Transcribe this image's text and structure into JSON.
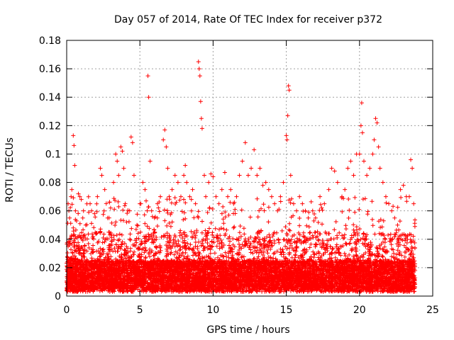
{
  "chart_data": {
    "type": "scatter",
    "title": "Day 057 of 2014, Rate Of TEC Index for receiver p372",
    "xlabel": "GPS time / hours",
    "ylabel": "ROTI / TECUs",
    "xlim": [
      0,
      25
    ],
    "ylim": [
      0,
      0.18
    ],
    "x_ticks": [
      0,
      5,
      10,
      15,
      20,
      25
    ],
    "y_ticks": [
      0,
      0.02,
      0.04,
      0.06,
      0.08,
      0.1,
      0.12,
      0.14,
      0.16,
      0.18
    ],
    "grid": true,
    "marker": "+",
    "color": "#ff0000",
    "series": [
      {
        "points": [
          [
            0.05,
            0.02
          ],
          [
            0.1,
            0.065
          ],
          [
            0.15,
            0.06
          ],
          [
            0.2,
            0.055
          ],
          [
            0.3,
            0.07
          ],
          [
            0.35,
            0.075
          ],
          [
            0.45,
            0.113
          ],
          [
            0.5,
            0.106
          ],
          [
            0.55,
            0.092
          ],
          [
            0.6,
            0.06
          ],
          [
            0.8,
            0.072
          ],
          [
            0.9,
            0.07
          ],
          [
            1.0,
            0.068
          ],
          [
            1.1,
            0.055
          ],
          [
            1.3,
            0.05
          ],
          [
            1.6,
            0.065
          ],
          [
            1.7,
            0.06
          ],
          [
            1.9,
            0.058
          ],
          [
            2.1,
            0.07
          ],
          [
            2.3,
            0.09
          ],
          [
            2.4,
            0.085
          ],
          [
            2.6,
            0.075
          ],
          [
            2.8,
            0.055
          ],
          [
            3.0,
            0.062
          ],
          [
            3.2,
            0.08
          ],
          [
            3.35,
            0.1
          ],
          [
            3.45,
            0.095
          ],
          [
            3.55,
            0.085
          ],
          [
            3.7,
            0.105
          ],
          [
            3.8,
            0.102
          ],
          [
            3.9,
            0.09
          ],
          [
            4.0,
            0.065
          ],
          [
            4.3,
            0.06
          ],
          [
            4.4,
            0.112
          ],
          [
            4.5,
            0.108
          ],
          [
            4.6,
            0.085
          ],
          [
            4.8,
            0.05
          ],
          [
            5.0,
            0.065
          ],
          [
            5.2,
            0.08
          ],
          [
            5.35,
            0.075
          ],
          [
            5.5,
            0.06
          ],
          [
            5.55,
            0.155
          ],
          [
            5.6,
            0.14
          ],
          [
            5.7,
            0.095
          ],
          [
            5.8,
            0.06
          ],
          [
            6.0,
            0.055
          ],
          [
            6.2,
            0.065
          ],
          [
            6.4,
            0.07
          ],
          [
            6.6,
            0.11
          ],
          [
            6.7,
            0.117
          ],
          [
            6.8,
            0.105
          ],
          [
            6.9,
            0.09
          ],
          [
            7.0,
            0.07
          ],
          [
            7.2,
            0.075
          ],
          [
            7.4,
            0.085
          ],
          [
            7.6,
            0.08
          ],
          [
            7.8,
            0.07
          ],
          [
            8.0,
            0.085
          ],
          [
            8.1,
            0.092
          ],
          [
            8.2,
            0.08
          ],
          [
            8.4,
            0.07
          ],
          [
            8.6,
            0.075
          ],
          [
            8.8,
            0.065
          ],
          [
            9.0,
            0.165
          ],
          [
            9.05,
            0.16
          ],
          [
            9.1,
            0.155
          ],
          [
            9.15,
            0.137
          ],
          [
            9.2,
            0.125
          ],
          [
            9.25,
            0.118
          ],
          [
            9.4,
            0.085
          ],
          [
            9.5,
            0.07
          ],
          [
            9.7,
            0.08
          ],
          [
            9.85,
            0.086
          ],
          [
            10.0,
            0.084
          ],
          [
            10.2,
            0.07
          ],
          [
            10.4,
            0.065
          ],
          [
            10.6,
            0.075
          ],
          [
            10.8,
            0.087
          ],
          [
            11.0,
            0.07
          ],
          [
            11.2,
            0.075
          ],
          [
            11.4,
            0.065
          ],
          [
            11.6,
            0.07
          ],
          [
            11.8,
            0.085
          ],
          [
            12.0,
            0.095
          ],
          [
            12.2,
            0.108
          ],
          [
            12.4,
            0.085
          ],
          [
            12.6,
            0.09
          ],
          [
            12.8,
            0.103
          ],
          [
            13.0,
            0.085
          ],
          [
            13.2,
            0.09
          ],
          [
            13.4,
            0.078
          ],
          [
            13.6,
            0.08
          ],
          [
            13.8,
            0.075
          ],
          [
            14.0,
            0.07
          ],
          [
            14.2,
            0.065
          ],
          [
            14.4,
            0.06
          ],
          [
            14.6,
            0.07
          ],
          [
            14.8,
            0.08
          ],
          [
            15.0,
            0.113
          ],
          [
            15.05,
            0.11
          ],
          [
            15.1,
            0.127
          ],
          [
            15.15,
            0.148
          ],
          [
            15.2,
            0.145
          ],
          [
            15.3,
            0.085
          ],
          [
            15.5,
            0.065
          ],
          [
            15.7,
            0.06
          ],
          [
            15.9,
            0.07
          ],
          [
            16.1,
            0.065
          ],
          [
            16.3,
            0.06
          ],
          [
            16.5,
            0.055
          ],
          [
            16.8,
            0.06
          ],
          [
            17.0,
            0.055
          ],
          [
            17.3,
            0.07
          ],
          [
            17.6,
            0.065
          ],
          [
            17.9,
            0.075
          ],
          [
            18.1,
            0.09
          ],
          [
            18.3,
            0.088
          ],
          [
            18.5,
            0.08
          ],
          [
            18.8,
            0.07
          ],
          [
            19.0,
            0.075
          ],
          [
            19.2,
            0.09
          ],
          [
            19.4,
            0.095
          ],
          [
            19.6,
            0.085
          ],
          [
            19.8,
            0.1
          ],
          [
            20.0,
            0.1
          ],
          [
            20.1,
            0.12
          ],
          [
            20.15,
            0.136
          ],
          [
            20.2,
            0.115
          ],
          [
            20.3,
            0.095
          ],
          [
            20.5,
            0.085
          ],
          [
            20.7,
            0.09
          ],
          [
            20.9,
            0.1
          ],
          [
            21.0,
            0.11
          ],
          [
            21.1,
            0.125
          ],
          [
            21.2,
            0.122
          ],
          [
            21.3,
            0.105
          ],
          [
            21.4,
            0.09
          ],
          [
            21.6,
            0.08
          ],
          [
            21.8,
            0.07
          ],
          [
            22.0,
            0.065
          ],
          [
            22.2,
            0.06
          ],
          [
            22.4,
            0.055
          ],
          [
            22.6,
            0.05
          ],
          [
            22.8,
            0.075
          ],
          [
            23.0,
            0.078
          ],
          [
            23.2,
            0.07
          ],
          [
            23.4,
            0.07
          ],
          [
            23.5,
            0.096
          ],
          [
            23.6,
            0.09
          ],
          [
            23.7,
            0.065
          ]
        ]
      }
    ]
  }
}
